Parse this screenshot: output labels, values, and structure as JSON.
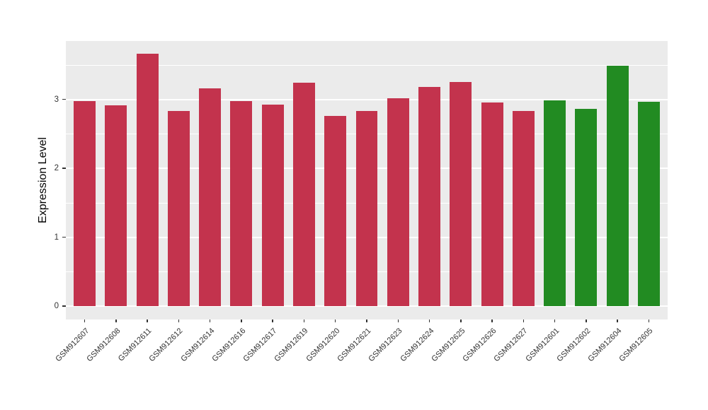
{
  "figure": {
    "background": "#FFFFFF"
  },
  "chart_data": {
    "type": "bar",
    "title": "",
    "xlabel": "",
    "ylabel": "Expression Level",
    "categories": [
      "GSM912607",
      "GSM912608",
      "GSM912611",
      "GSM912612",
      "GSM912614",
      "GSM912616",
      "GSM912617",
      "GSM912619",
      "GSM912620",
      "GSM912621",
      "GSM912623",
      "GSM912624",
      "GSM912625",
      "GSM912626",
      "GSM912627",
      "GSM912601",
      "GSM912602",
      "GSM912604",
      "GSM912605"
    ],
    "values": [
      2.98,
      2.92,
      3.67,
      2.83,
      3.16,
      2.98,
      2.93,
      3.24,
      2.76,
      2.83,
      3.02,
      3.18,
      3.26,
      2.96,
      2.84,
      2.99,
      2.87,
      3.49,
      2.97
    ],
    "bar_group": [
      0,
      0,
      0,
      0,
      0,
      0,
      0,
      0,
      0,
      0,
      0,
      0,
      0,
      0,
      0,
      1,
      1,
      1,
      1
    ],
    "group_colors": [
      "#C3334D",
      "#228B22"
    ],
    "yticks": [
      0,
      1,
      2,
      3
    ],
    "ylim": [
      -0.19,
      3.85
    ],
    "panel_background": "#EBEBEB",
    "gridline_color": "#FFFFFF",
    "axis_tick_color": "#333333",
    "grid": true,
    "legend_position": "none",
    "x_label_angle_deg": 45
  }
}
